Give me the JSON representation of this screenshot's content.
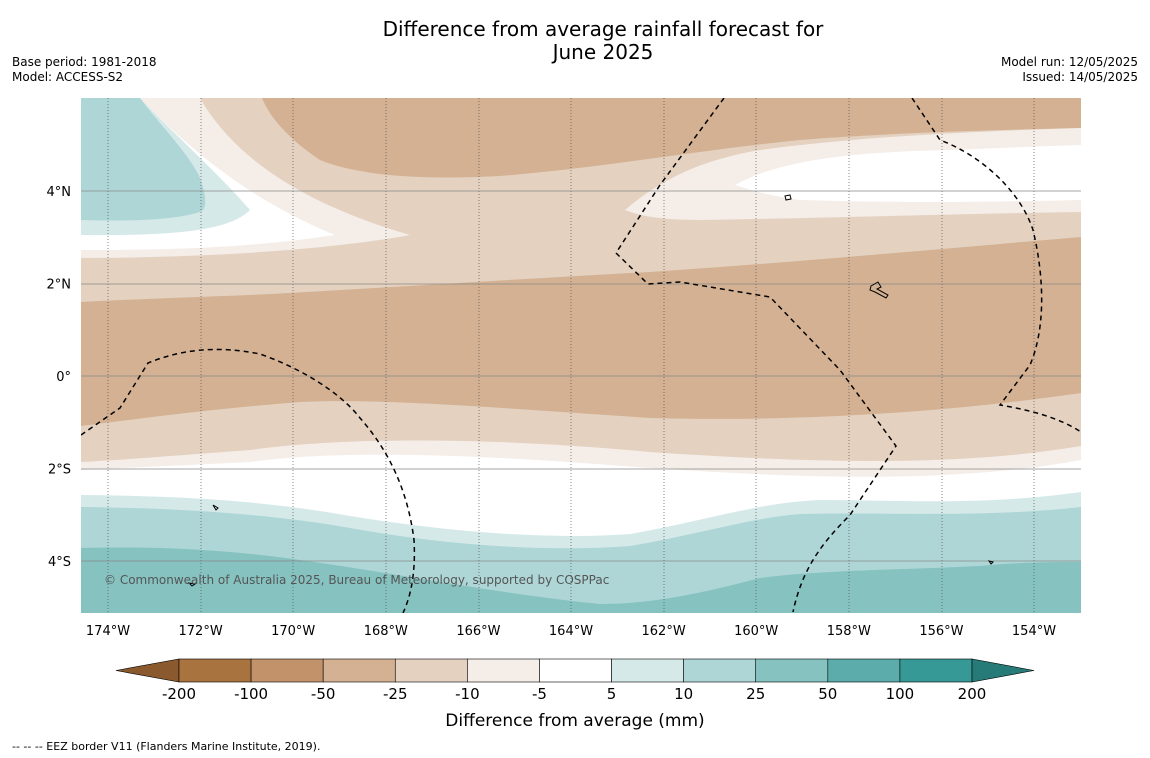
{
  "header": {
    "title_line1": "Difference from average rainfall forecast for",
    "title_line2": "June 2025",
    "base_period": "Base period: 1981-2018",
    "model": "Model: ACCESS-S2",
    "model_run": "Model run: 12/05/2025",
    "issued": "Issued: 14/05/2025"
  },
  "chart_data": {
    "type": "heatmap",
    "title": "Difference from average rainfall forecast for June 2025",
    "x_ticks": [
      "174°W",
      "172°W",
      "170°W",
      "168°W",
      "166°W",
      "164°W",
      "162°W",
      "160°W",
      "158°W",
      "156°W",
      "154°W"
    ],
    "x_tick_values": [
      -174,
      -172,
      -170,
      -168,
      -166,
      -164,
      -162,
      -160,
      -158,
      -156,
      -154
    ],
    "y_ticks": [
      "4°N",
      "2°N",
      "0°",
      "2°S",
      "4°S"
    ],
    "y_tick_values": [
      4,
      2,
      0,
      -2,
      -4
    ],
    "xlim": [
      -174.6,
      -153
    ],
    "ylim": [
      -5.1,
      6
    ],
    "colorbar": {
      "label": "Difference from average (mm)",
      "tick_labels": [
        "-200",
        "-100",
        "-50",
        "-25",
        "-10",
        "-5",
        "5",
        "10",
        "25",
        "50",
        "100",
        "200"
      ],
      "colors": [
        "#8a5a2e",
        "#a97340",
        "#c2936b",
        "#d3b192",
        "#e4d1c0",
        "#f4ede8",
        "#ffffff",
        "#d6e9e9",
        "#aed6d6",
        "#85c2c0",
        "#5bacaa",
        "#379996",
        "#267b78"
      ]
    },
    "annotations": {
      "copyright": "© Commonwealth of Australia 2025, Bureau of Meteorology, supported by COSPPac",
      "eez_note": "--  --  -- EEZ border V11 (Flanders Marine Institute, 2019)."
    }
  }
}
